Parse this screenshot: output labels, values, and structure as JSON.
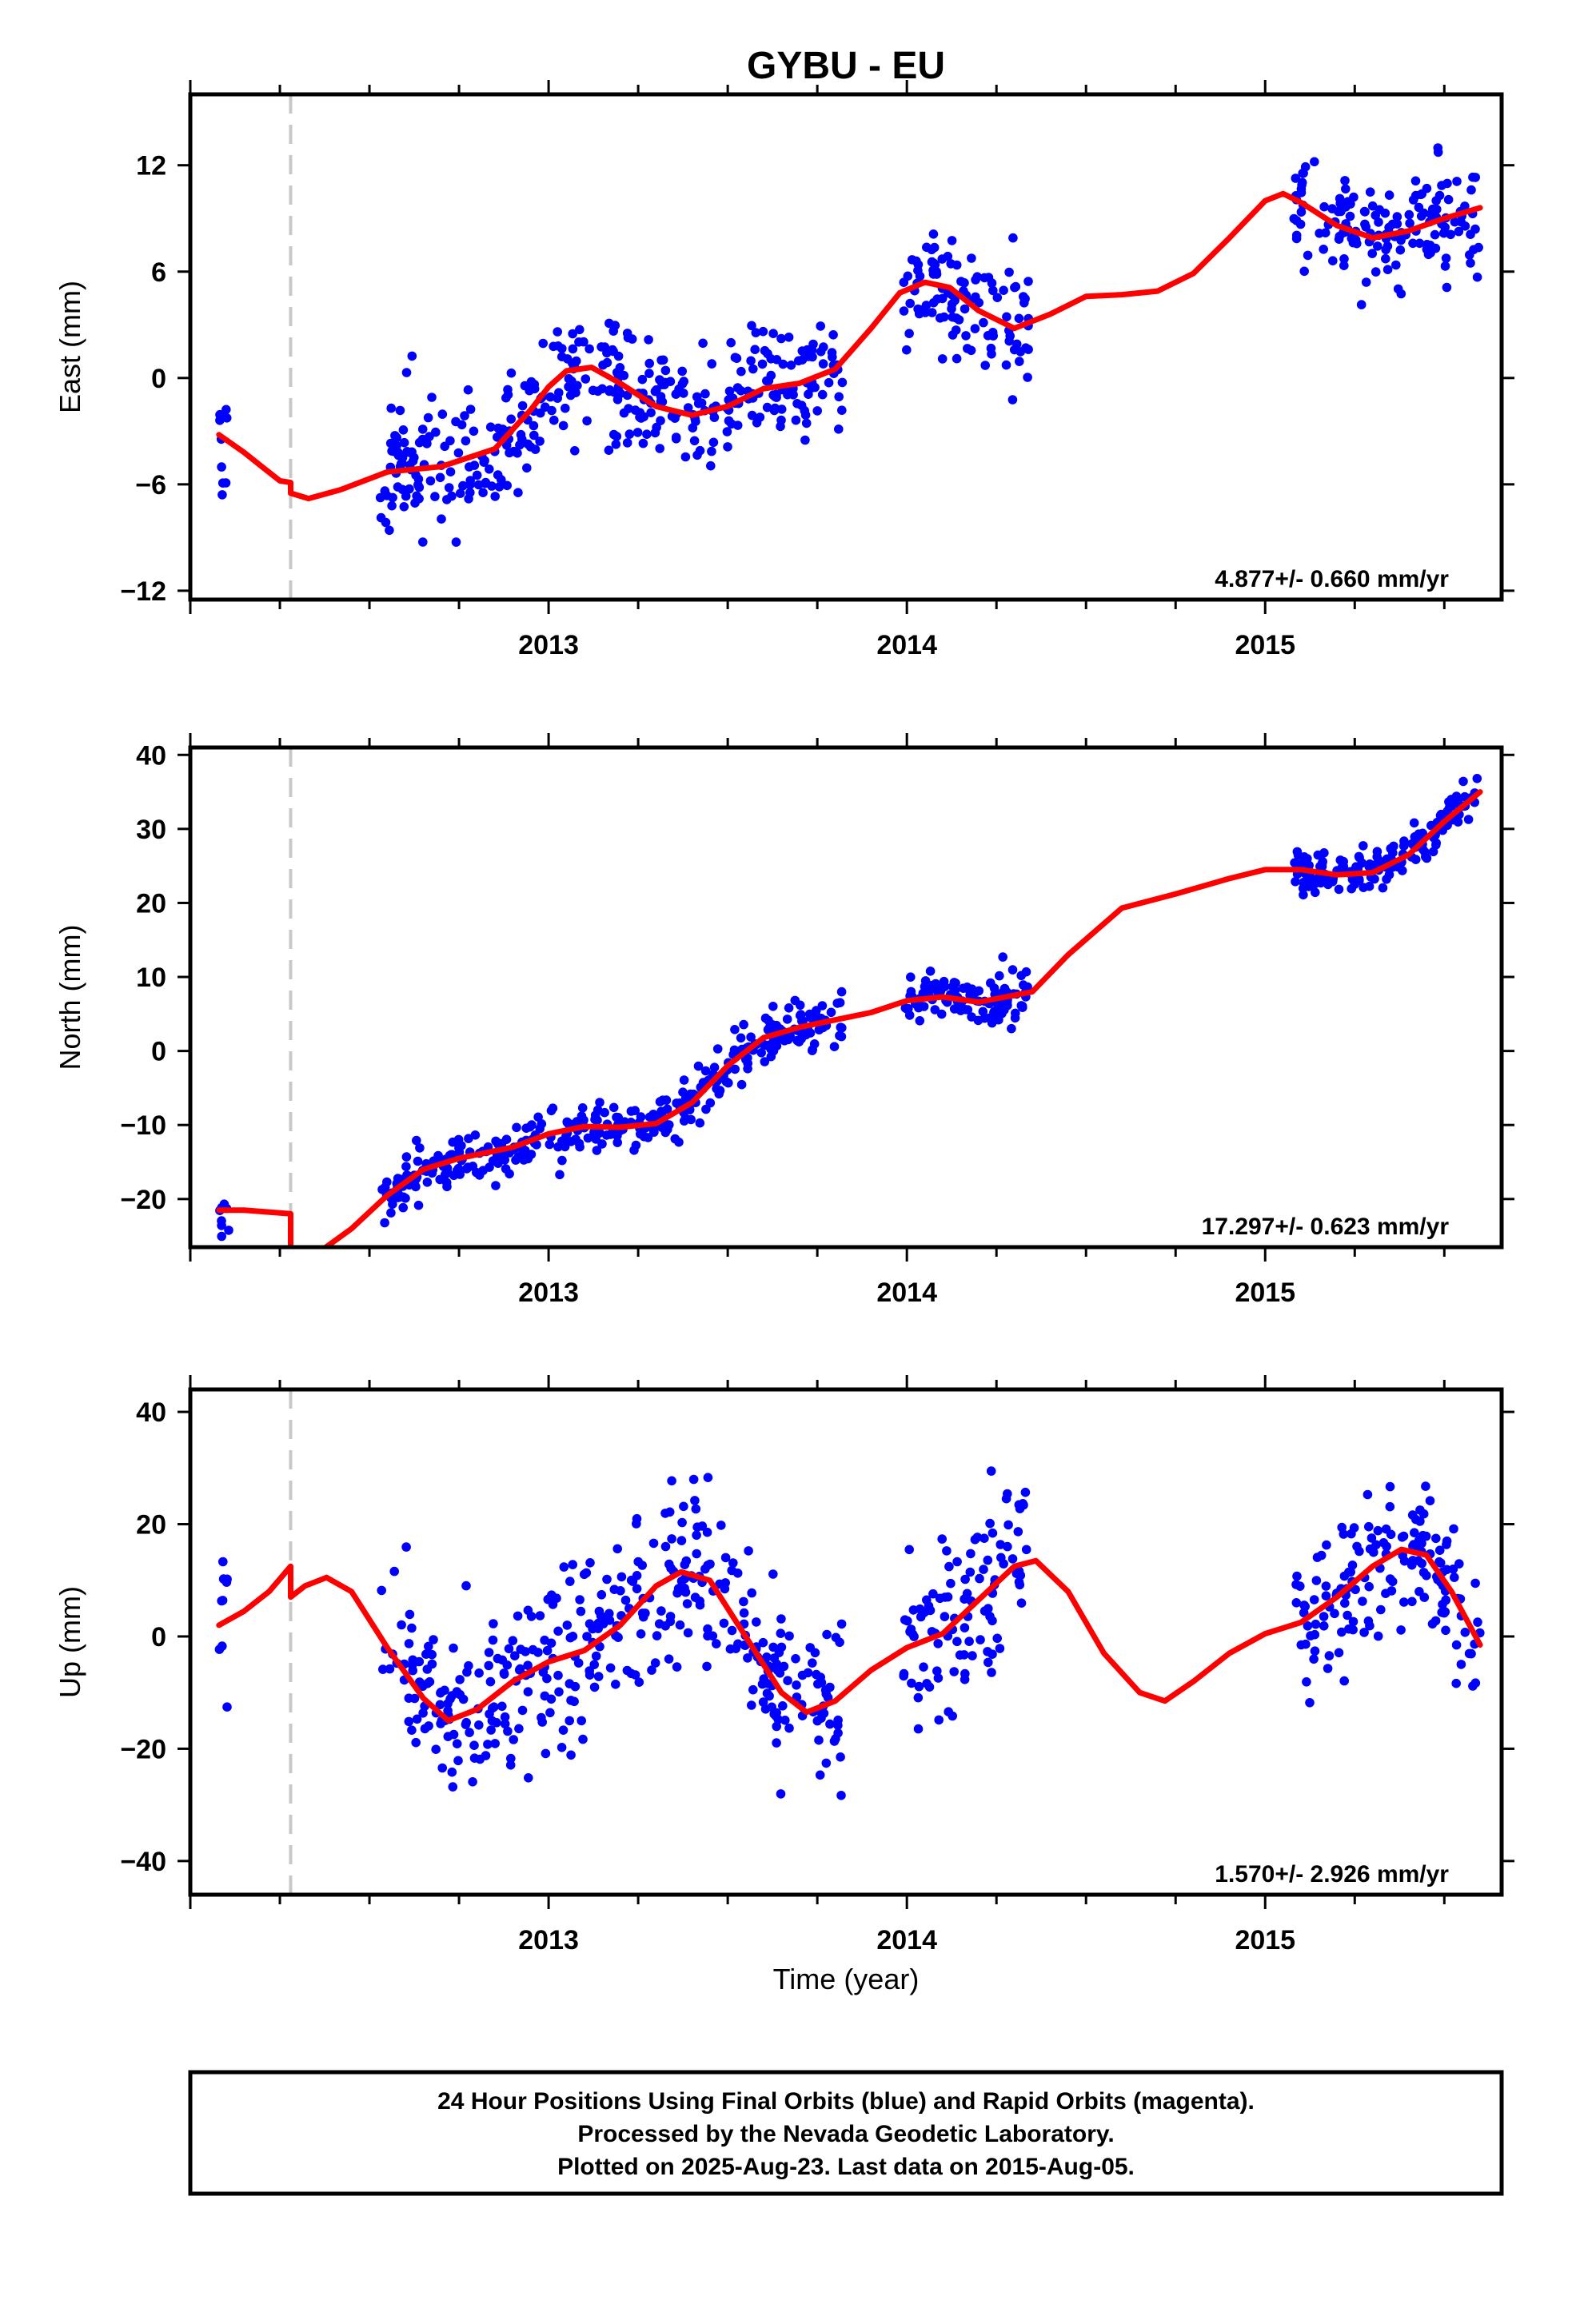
{
  "title": "GYBU - EU",
  "xlabel": "Time (year)",
  "footer": [
    "24 Hour Positions Using Final Orbits (blue) and Rapid Orbits (magenta).",
    "Processed by the Nevada Geodetic Laboratory.",
    "Plotted on 2025-Aug-23. Last data on 2015-Aug-05."
  ],
  "colors": {
    "points": "#0000ff",
    "fit": "#ff0000",
    "antenna_change": "#c8c8c8",
    "frame": "#000000"
  },
  "chart_data": [
    {
      "type": "scatter",
      "title": "",
      "ylabel": "East (mm)",
      "xlabel": "",
      "rate_label": "4.877+/- 0.660 mm/yr",
      "xlim": [
        2012.0,
        2015.66
      ],
      "ylim": [
        -12.5,
        16
      ],
      "yticks": [
        -12,
        -6,
        0,
        6,
        12
      ],
      "xticks": [
        2013,
        2014,
        2015
      ],
      "xtick_labels": [
        "2013",
        "2014",
        "2015"
      ],
      "antenna_change_x": 2012.28,
      "data_segments": [
        [
          2012.08,
          2012.11
        ],
        [
          2012.53,
          2013.82
        ],
        [
          2013.99,
          2014.34
        ],
        [
          2015.08,
          2015.6
        ]
      ],
      "fit_curve": {
        "x": [
          2012.08,
          2012.15,
          2012.2,
          2012.25,
          2012.28,
          2012.28,
          2012.33,
          2012.42,
          2012.55,
          2012.7,
          2012.85,
          2012.95,
          2013.0,
          2013.05,
          2013.12,
          2013.2,
          2013.3,
          2013.4,
          2013.5,
          2013.6,
          2013.7,
          2013.8,
          2013.9,
          2013.98,
          2014.05,
          2014.12,
          2014.2,
          2014.3,
          2014.4,
          2014.5,
          2014.6,
          2014.7,
          2014.8,
          2014.9,
          2015.0,
          2015.05,
          2015.1,
          2015.2,
          2015.3,
          2015.4,
          2015.5,
          2015.6
        ],
        "y": [
          -3.2,
          -4.2,
          -5.0,
          -5.8,
          -5.9,
          -6.5,
          -6.8,
          -6.3,
          -5.3,
          -5.0,
          -4.0,
          -1.8,
          -0.5,
          0.4,
          0.6,
          -0.3,
          -1.6,
          -2.1,
          -1.6,
          -0.6,
          -0.3,
          0.5,
          2.8,
          4.8,
          5.4,
          5.1,
          3.8,
          2.8,
          3.6,
          4.6,
          4.7,
          4.9,
          5.9,
          7.9,
          10.0,
          10.4,
          9.9,
          8.6,
          7.9,
          8.3,
          9.0,
          9.6
        ]
      },
      "noise_scale": 1.8,
      "seed": 11
    },
    {
      "type": "scatter",
      "title": "",
      "ylabel": "North (mm)",
      "xlabel": "",
      "rate_label": "17.297+/- 0.623 mm/yr",
      "xlim": [
        2012.0,
        2015.66
      ],
      "ylim": [
        -26.5,
        41
      ],
      "yticks": [
        -20,
        -10,
        0,
        10,
        20,
        30,
        40
      ],
      "xticks": [
        2013,
        2014,
        2015
      ],
      "xtick_labels": [
        "2013",
        "2014",
        "2015"
      ],
      "antenna_change_x": 2012.28,
      "data_segments": [
        [
          2012.08,
          2012.11
        ],
        [
          2012.53,
          2013.82
        ],
        [
          2013.99,
          2014.34
        ],
        [
          2015.08,
          2015.6
        ]
      ],
      "fit_curve": {
        "x": [
          2012.08,
          2012.15,
          2012.28,
          2012.28,
          2012.35,
          2012.45,
          2012.55,
          2012.65,
          2012.75,
          2012.9,
          2013.0,
          2013.1,
          2013.2,
          2013.3,
          2013.4,
          2013.5,
          2013.6,
          2013.7,
          2013.8,
          2013.9,
          2014.0,
          2014.1,
          2014.2,
          2014.35,
          2014.45,
          2014.6,
          2014.75,
          2014.9,
          2015.0,
          2015.1,
          2015.2,
          2015.3,
          2015.4,
          2015.5,
          2015.6
        ],
        "y": [
          -21.5,
          -21.5,
          -22.0,
          -27.5,
          -27.5,
          -24.0,
          -19.5,
          -16.0,
          -14.5,
          -13.0,
          -11.2,
          -10.2,
          -10.3,
          -9.8,
          -7.0,
          -2.0,
          1.8,
          3.2,
          4.2,
          5.2,
          6.8,
          7.3,
          6.6,
          8.0,
          13.0,
          19.3,
          21.2,
          23.3,
          24.5,
          24.5,
          23.8,
          24.1,
          26.5,
          31.0,
          35.0
        ]
      },
      "noise_scale": 1.6,
      "seed": 23
    },
    {
      "type": "scatter",
      "title": "",
      "ylabel": "Up (mm)",
      "xlabel": "Time (year)",
      "rate_label": "1.570+/- 2.926 mm/yr",
      "xlim": [
        2012.0,
        2015.66
      ],
      "ylim": [
        -46,
        44
      ],
      "yticks": [
        -40,
        -20,
        0,
        20,
        40
      ],
      "xticks": [
        2013,
        2014,
        2015
      ],
      "xtick_labels": [
        "2013",
        "2014",
        "2015"
      ],
      "antenna_change_x": 2012.28,
      "data_segments": [
        [
          2012.08,
          2012.11
        ],
        [
          2012.53,
          2013.82
        ],
        [
          2013.99,
          2014.34
        ],
        [
          2015.08,
          2015.6
        ]
      ],
      "fit_curve": {
        "x": [
          2012.08,
          2012.15,
          2012.22,
          2012.28,
          2012.28,
          2012.32,
          2012.38,
          2012.45,
          2012.55,
          2012.65,
          2012.72,
          2012.8,
          2012.9,
          2013.0,
          2013.1,
          2013.2,
          2013.3,
          2013.37,
          2013.45,
          2013.55,
          2013.65,
          2013.72,
          2013.8,
          2013.9,
          2014.0,
          2014.1,
          2014.2,
          2014.3,
          2014.36,
          2014.45,
          2014.55,
          2014.65,
          2014.72,
          2014.8,
          2014.9,
          2015.0,
          2015.1,
          2015.2,
          2015.3,
          2015.38,
          2015.45,
          2015.52,
          2015.6
        ],
        "y": [
          2.0,
          4.5,
          8.0,
          12.5,
          7.0,
          9.0,
          10.5,
          8.0,
          -2.0,
          -11.0,
          -15.0,
          -13.0,
          -8.0,
          -4.5,
          -2.5,
          2.0,
          9.0,
          11.5,
          10.0,
          0.0,
          -10.0,
          -13.5,
          -11.5,
          -6.0,
          -2.0,
          0.5,
          6.5,
          12.5,
          13.5,
          8.0,
          -3.0,
          -10.0,
          -11.5,
          -8.0,
          -3.0,
          0.5,
          2.5,
          7.0,
          12.5,
          15.5,
          14.5,
          8.0,
          -1.5
        ]
      },
      "noise_scale": 7.5,
      "seed": 37
    }
  ]
}
